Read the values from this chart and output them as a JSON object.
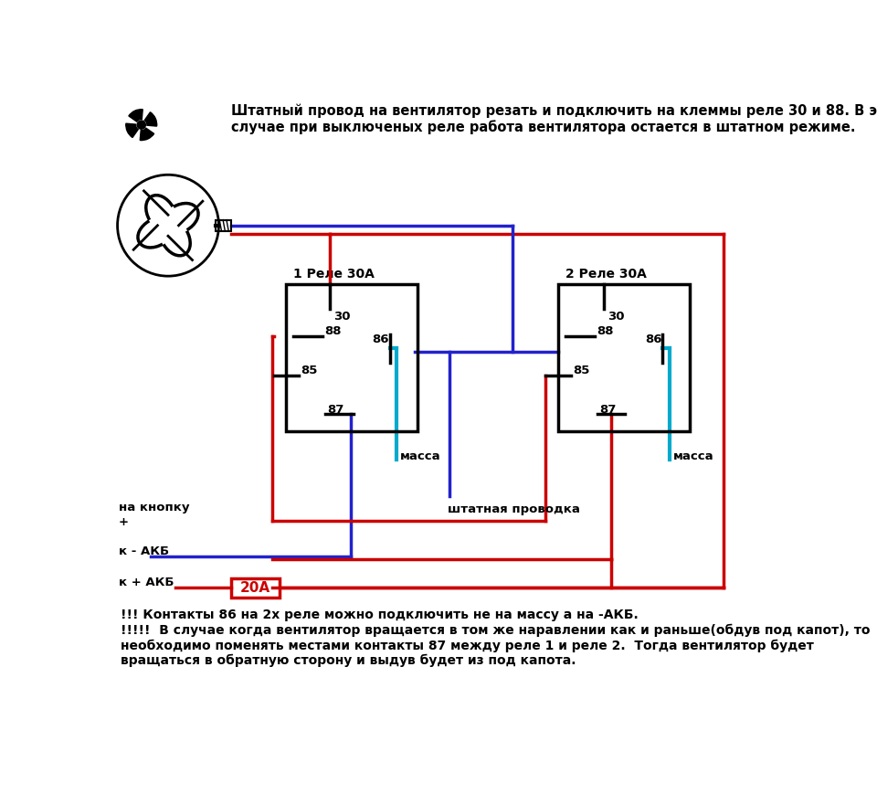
{
  "bg_color": "#ffffff",
  "title_text": "Штатный провод на вентилятор резать и подключить на клеммы реле 30 и 88. В этом\nслучае при выключеных реле работа вентилятора остается в штатном режиме.",
  "bottom_text": "!!! Контакты 86 на 2х реле можно подключить не на массу а на -АКБ.\n!!!!!  В случае когда вентилятор вращается в том же наравлении как и раньше(обдув под капот), то\nнеобходимо поменять местами контакты 87 между реле 1 и реле 2.  Тогда вентилятор будет\nвращаться в обратную сторону и выдув будет из под капота.",
  "relay1_label": "1 Реле 30А",
  "relay2_label": "2 Реле 30А",
  "massa_label": "масса",
  "shtab_label": "штатная проводка",
  "na_knopku": "на кнопку",
  "plus_sign": "+",
  "k_minus_akb": "к - АКБ",
  "k_plus_akb": "к + АКБ",
  "fuse_label": "20А",
  "red": "#cc0000",
  "blue": "#2222cc",
  "cyan": "#00aacc",
  "black": "#000000",
  "lw": 2.5
}
